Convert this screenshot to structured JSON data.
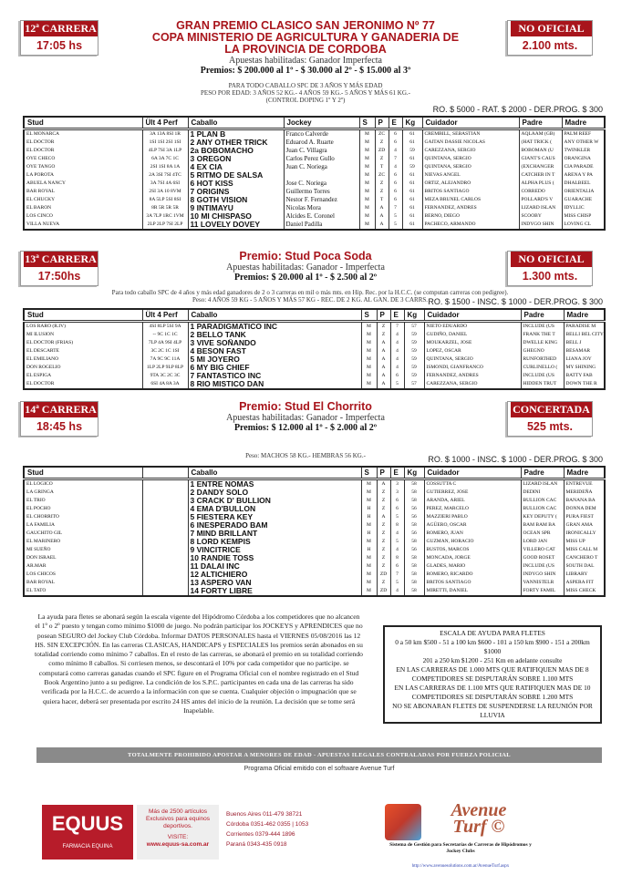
{
  "colors": {
    "accent": "#a8141b",
    "banner": "#8a8a8a"
  },
  "races": [
    {
      "number": "12ª CARRERA",
      "time": "17:05 hs",
      "status": "NO OFICIAL",
      "distance": "2.100 mts.",
      "titles": [
        "GRAN PREMIO CLASICO SAN JERONIMO Nº 77",
        "COPA MINISTERIO DE AGRICULTURA Y GANADERIA DE",
        "LA PROVINCIA DE CORDOBA"
      ],
      "apuestas": "Apuestas habilitadas: Ganador Imperfecta",
      "premios": "Premios: $ 200.000 al 1º - $ 30.000 al 2º - $ 15.000 al 3º",
      "conditions": [
        "PARA TODO CABALLO SPC DE 3 AÑOS Y MÁS EDAD",
        "PESO POR EDAD: 3 AÑOS 52 KG.- 4 AÑOS 59 KG.- 5 AÑOS Y MÁS 61 KG.-",
        "(CONTROL DOPING 1º Y 2º)"
      ],
      "fees": "RO. $ 5000 - RAT. $ 2000 - DER.PROG. $ 300",
      "headers": [
        "Stud",
        "Ült 4 Perf",
        "Caballo",
        "Jockey",
        "S",
        "P",
        "E",
        "Kg",
        "Cuidador",
        "Padre",
        "Madre"
      ],
      "rows": [
        [
          "EL MONARCA",
          "3A 13A 8SI 1R",
          "1   PLAN B",
          "Franco Calverde",
          "M",
          "ZC",
          "6",
          "61",
          "CREMBILL, SEBASTIAN",
          "AQLAAM (GB)",
          "PALM REEF"
        ],
        [
          "EL DOCTOR",
          "1SI 1SI 2SI 1SI",
          "2   ANY OTHER TRICK",
          "Eduarod A. Ruarte",
          "M",
          "Z",
          "6",
          "61",
          "GAITAN DASSIE NICOLAS",
          "(HAT TRICK (",
          "ANY OTHER W"
        ],
        [
          "EL DOCTOR",
          "4LP 7SI 3A 1LP",
          "2a  BOBOMACHO",
          "Juan C. Villagra",
          "M",
          "ZD",
          "4",
          "59",
          "CAREZZANA, SERGIO",
          "BOBOMAN (U",
          "TWINKLER"
        ],
        [
          "OYE CHECO",
          "6A 3A 7C 1C",
          "3   OREGON",
          "Carlos Perez Gullo",
          "M",
          "Z",
          "7",
          "61",
          "QUINTANA, SERGIO",
          "GIANT'S CAUS",
          "ORANGINA"
        ],
        [
          "OYE TANGO",
          "2SI 1SI 8A 1A",
          "4   EX CIA",
          "Juan C. Noriega",
          "M",
          "T",
          "4",
          "59",
          "QUINTANA, SERGIO",
          "(EXCHANGER",
          "CIA PARADE"
        ],
        [
          "LA POROTA",
          "2A 3SI 7SI 4TC",
          "5   RITMO DE SALSA",
          "",
          "M",
          "ZC",
          "6",
          "61",
          "NIEVAS ANGEL",
          "CATCHER IN T",
          "ARENA Y PA"
        ],
        [
          "ABUELA NANCY",
          "3A 7SI 4A 6SI",
          "6   HOT KISS",
          "Jose C. Noriega",
          "M",
          "Z",
          "6",
          "61",
          "ORTIZ, ALEJANDRO",
          "ALPHA PLUS (",
          "DHALBEEL"
        ],
        [
          "BAR ROYAL",
          "2SI 3A 10 8VM",
          "7   ORIGINS",
          "Guillermo Torres",
          "M",
          "Z",
          "6",
          "61",
          "BRITOS SANTIAGO",
          "CORREDO",
          "ORIENTALIA"
        ],
        [
          "EL CHUCKY",
          "8A 5LP 5SI 8SI",
          "8   GOTH VISION",
          "Nestor F. Fernandez",
          "M",
          "T",
          "6",
          "61",
          "MEZA BRUNEL CARLOS",
          "POLLARD'S V",
          "GUARACHE"
        ],
        [
          "EL BARON",
          "8R 5R 5R 5R",
          "9   INTIMAYU",
          "Nicolas Mora",
          "M",
          "A",
          "7",
          "61",
          "FERNANDEZ, ANDRES",
          "LIZARD ISLAN",
          "IDYLLIC"
        ],
        [
          "LOS CINCO",
          "3A 7LP 1RC 1VM",
          "10  MI CHISPASO",
          "Alcides E. Coronel",
          "M",
          "A",
          "5",
          "61",
          "BERNO, DIEGO",
          "SCOOBY",
          "MISS CHISP"
        ],
        [
          "VILLA NUEVA",
          "2LP 2LP 7SI 2LP",
          "11  LOVELY DOVEY",
          "Daniel Padilla",
          "M",
          "A",
          "5",
          "61",
          "PACHECO, ARMANDO",
          "INDYGO SHIN",
          "LOVING CL"
        ]
      ]
    },
    {
      "number": "13ª CARRERA",
      "time": "17:50hs",
      "status": "NO OFICIAL",
      "distance": "1.300 mts.",
      "titles": [
        "Premio: Stud Poca Soda"
      ],
      "apuestas": "Apuestas habilitadas: Ganador - Imperfecta",
      "premios": "Premios: $ 20.000 al 1º - $ 2.500 al 2º",
      "conditions": [
        "Para todo caballo SPC de 4 años y más edad ganadores de 2 o 3 carreras en mil o más mts. en Hip. Rec. por la H.C.C. (se computan carreras con pedigree).",
        "Peso: 4 AÑOS 59 KG - 5 AÑOS Y MÁS 57 KG - REC. DE 2 KG. AL GAN. DE 3 CARRS."
      ],
      "fees": "RO. $ 1500 - INSC. $ 1000 - DER.PROG. $ 300",
      "headers": [
        "Stud",
        "Ült 4 Perf",
        "Caballo",
        "S",
        "P",
        "E",
        "Kg",
        "Cuidador",
        "Padre",
        "Madre"
      ],
      "rows": [
        [
          "LOS RARO (R.IV)",
          "4SI 8LP 5SI 9A",
          "1   PARADIGMATICO INC",
          "M",
          "Z",
          "7",
          "57",
          "NIETO EDUARDO",
          "INCLUDE (US",
          "PARADISE M"
        ],
        [
          "MI ILUSION",
          "-- 9C 1C 1C",
          "2   BELLO TANK",
          "M",
          "Z",
          "4",
          "59",
          "GUDIÑO, DANIEL",
          "FRANK THE T",
          "BELLI BEL CITY"
        ],
        [
          "EL DOCTOR (FRIAS)",
          "7LP 4A 9SI 4LP",
          "3   VIVE SOÑANDO",
          "M",
          "A",
          "4",
          "59",
          "MOUKARZEL, JOSE",
          "DWELLE KING",
          "BELL J"
        ],
        [
          "EL DESCARTE",
          "3C 2C 1C 1SI",
          "4   BESON FAST",
          "M",
          "A",
          "4",
          "59",
          "LOPEZ, OSCAR",
          "GHEGNO",
          "BESAMAR"
        ],
        [
          "EL EMILIANO",
          "7A 9C 9C 11A",
          "5   MI JOYERO",
          "M",
          "A",
          "4",
          "59",
          "QUINTANA, SERGIO",
          "RUNFORTHED",
          "LIANA JOY"
        ],
        [
          "DON ROGELIO",
          "1LP 2LP 9LP 8LP",
          "6   MY BIG CHIEF",
          "M",
          "A",
          "4",
          "59",
          "ISMONDI, GIANFRANCO",
          "CURLINELLO (",
          "MY SHINING"
        ],
        [
          "EL ESPIGA",
          "9TA 3C 2C 3C",
          "7   FANTASTICO INC",
          "M",
          "A",
          "6",
          "59",
          "FERNANDEZ, ANDRES",
          "INCLUDE (US",
          "BATTY FAB"
        ],
        [
          "EL DOCTOR",
          "6SI 4A 8A 3A",
          "8   RIO MISTICO DAN",
          "M",
          "A",
          "5",
          "57",
          "CAREZZANA, SERGIO",
          "HIDDEN TRUT",
          "DOWN THE R"
        ]
      ]
    },
    {
      "number": "14ª CARRERA",
      "time": "18:45 hs",
      "status": "CONCERTADA",
      "distance": "525 mts.",
      "titles": [
        "Premio: Stud El Chorrito"
      ],
      "apuestas": "Apuestas habilitadas: Ganador - Imperfecta",
      "premios": "Premios: $ 12.000 al 1º - $ 2.000 al 2º",
      "conditions": [
        "Peso: MACHOS 58 KG.- HEMBRAS 56 KG.-"
      ],
      "fees": "RO. $ 1000 - INSC. $ 1000 - DER.PROG. $ 300",
      "headers": [
        "Stud",
        "",
        "Caballo",
        "S",
        "P",
        "E",
        "Kg",
        "Cuidador",
        "Padre",
        "Madre"
      ],
      "rows": [
        [
          "EL LOGICO",
          "",
          "1   ENTRE NOMAS",
          "M",
          "A",
          "3",
          "58",
          "COSSUTTA C",
          "LIZARD ISLAN",
          "ENTREVUE"
        ],
        [
          "LA GRINGA",
          "",
          "2   DANDY SOLO",
          "M",
          "Z",
          "3",
          "58",
          "GUTIERREZ, JOSE",
          "DEDINI",
          "MERIDEÑA"
        ],
        [
          "EL TRIO",
          "",
          "3   CRACK D' BULLION",
          "M",
          "Z",
          "6",
          "58",
          "ARANDA, ARIEL",
          "BULLION CAC",
          "BANANA BA"
        ],
        [
          "EL POCHO",
          "",
          "4   EMA D'BULLON",
          "H",
          "Z",
          "6",
          "56",
          "PEREZ, MARCELO",
          "BULLION CAC",
          "DONNA DEM"
        ],
        [
          "EL CHORRITO",
          "",
          "5   FIESTERA KEY",
          "H",
          "A",
          "5",
          "56",
          "MAZZIERI PABLO",
          "KEY DEPUTY (",
          "PURA FIEST"
        ],
        [
          "LA FAMILIA",
          "",
          "6   INESPERADO BAM",
          "M",
          "Z",
          "8",
          "58",
          "AGÜERO, OSCAR",
          "BAM BAM BA",
          "GRAN AMA"
        ],
        [
          "GAUCHITO GIL",
          "",
          "7   MIND BRILLANT",
          "H",
          "Z",
          "4",
          "56",
          "ROMERO, JUAN",
          "OCEAN SPR",
          "IRONICALLY"
        ],
        [
          "EL MARINERO",
          "",
          "8   LORD KEMPIS",
          "M",
          "Z",
          "5",
          "58",
          "GUZMAN, HORACIO",
          "LORD JAN",
          "MISS UP"
        ],
        [
          "MI SUEÑO",
          "",
          "9   VINCITRICE",
          "H",
          "Z",
          "4",
          "56",
          "BUSTOS, MARCOS",
          "VILLERO CAT",
          "MISS CALL M"
        ],
        [
          "DON ISRAEL",
          "",
          "10 RANDIE TOSS",
          "M",
          "Z",
          "8",
          "58",
          "MONCADA, JORGE",
          "GOOD ROSET",
          "CANCHERO T"
        ],
        [
          "AR.MAR",
          "",
          "11 DALAI INC",
          "M",
          "Z",
          "6",
          "58",
          "GLADES, MARIO",
          "INCLUDE (US",
          "SOUTH DAL"
        ],
        [
          "LOS CHICOS",
          "",
          "12 ALTICHIERO",
          "M",
          "ZD",
          "7",
          "58",
          "ROMERO, RICARDO",
          "INDYGO SHIN",
          "LIBRARY"
        ],
        [
          "BAR ROYAL",
          "",
          "13  ASPERO VAN",
          "M",
          "Z",
          "5",
          "58",
          "BRITOS SANTIAGO",
          "VANNISTELR",
          "ASPERA FIT"
        ],
        [
          "EL TATO",
          "",
          "14 FORTY LIBRE",
          "M",
          "ZD",
          "4",
          "58",
          "MIRETTI, DANIEL",
          "FORTY FAMIL",
          "MISS CHECK"
        ]
      ]
    }
  ],
  "notes": "La ayuda para fletes se abonará según la escala vigente del Hipódromo Córdoba a los competidores que no alcancen el 1º o 2º puesto y tengan como mínimo $1000 de juego. No podrán participar los JOCKEYS y APRENDICES que no posean SEGURO del Jockey Club Córdoba. Informar DATOS PERSONALES hasta el VIERNES 05/08/2016 las 12 HS. SIN EXCEPCIÓN. En las carreras CLASICAS, HANDICAPS y ESPECIALES los premios serán abonados en su totalidad corriendo como mínimo 7 caballos. En el resto de las carreras, se abonará el premio en su totalidad corriendo como mínimo 8 caballos. Si corriesen menos, se descontará el 10% por cada competidor que no participe. se computará como carreras ganadas cuando el SPC figure en el Programa Oficial con el nombre registrado en el Stud Book Argentino junto a su pedigree. La condición de los S.P.C. participantes en cada una de las carreras ha sido verificada por la H.C.C. de acuerdo a la información con que se cuenta. Cualquier objeción o impugnación que se quiera hacer, deberá ser presentada por escrito 24 HS antes del inicio de la reunión. La decisión que se tome será Inapelable.",
  "escala": [
    "ESCALA DE AYUDA PARA FLETES",
    "0 a 50 km $500 - 51 a 100 km $600 - 101 a 150 km $900 - 151 a 200km $1000",
    "201 a 250 km $1200 - 251 Km en adelante consulte",
    "EN LAS CARRERAS DE 1.000 MTS QUE RATIFIQUEN MAS DE 8 COMPETIDORES SE DISPUTARÁN SOBRE 1.100 MTS",
    "EN LAS CARRERAS DE 1.100 MTS QUE RATIFIQUEN MAS DE 10 COMPETIDORES SE DISPUTARÁN SOBRE 1.200 MTS",
    "NO SE ABONARAN FLETES DE SUSPENDERSE LA REUNIÓN POR LLUVIA"
  ],
  "banner": "TOTALMENTE PROHIBIDO APOSTAR A MENORES DE EDAD - APUESTAS ILEGALES CONTRALADAS POR FUERZA POLICIAL",
  "software": "Programa Oficial emitido con el software Avenue Turf",
  "ads": {
    "equus": {
      "logo": "EQUUS",
      "tagline": "FARMACIA EQUINA",
      "promo": [
        "Más de 2500 artículos",
        "Exclusivos para equinos",
        "deportivos.",
        "VISITE:",
        "www.equus-sa.com.ar"
      ],
      "cities": [
        "Buenos Aires 011-479 38721",
        "Córdoba 0351-462 0355 | 1053",
        "Corrientes 0379-444 1896",
        "Paraná 0343-435 0918"
      ]
    },
    "avenue": {
      "logo": [
        "Avenue",
        "Turf ©"
      ],
      "desc": "Sistema de Gestión para Secretarías de Carreras de Hipódromos y Jockey Clubs",
      "link": "http://www.avenuesolutions.com.ar/AvenueTurf.aspx"
    }
  }
}
